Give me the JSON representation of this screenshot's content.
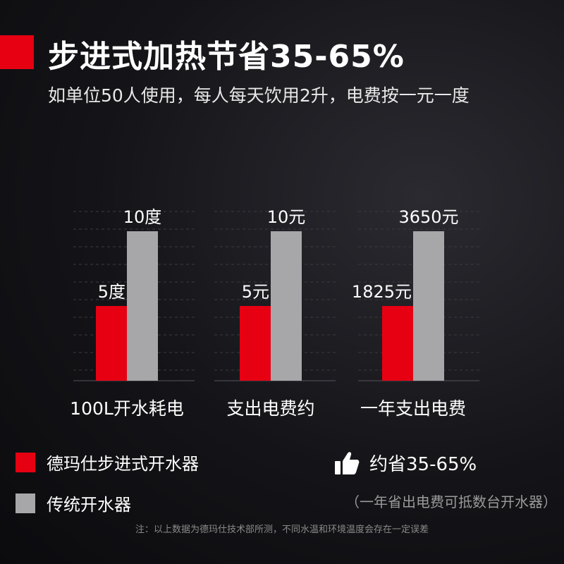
{
  "header": {
    "title": "步进式加热节省35-65%",
    "subtitle": "如单位50人使用，每人每天饮用2升，电费按一元一度",
    "accent_color": "#e60012"
  },
  "chart_data": {
    "type": "bar",
    "title": "",
    "xlabel": "",
    "ylabel": "",
    "grid": true,
    "legend_position": "bottom-left",
    "groups": [
      {
        "category": "100L开水耗电",
        "values": [
          5,
          10
        ],
        "labels": [
          "5度",
          "10度"
        ]
      },
      {
        "category": "支出电费约",
        "values": [
          5,
          10
        ],
        "labels": [
          "5元",
          "10元"
        ]
      },
      {
        "category": "一年支出电费",
        "values": [
          1825,
          3650
        ],
        "labels": [
          "1825元",
          "3650元"
        ]
      }
    ],
    "series": [
      {
        "name": "德玛仕步进式开水器",
        "color": "#e60012"
      },
      {
        "name": "传统开水器",
        "color": "#a7a7aa"
      }
    ]
  },
  "legend": {
    "items": [
      {
        "label": "德玛仕步进式开水器",
        "color": "#e60012"
      },
      {
        "label": "传统开水器",
        "color": "#a7a7aa"
      }
    ]
  },
  "saving": {
    "icon": "thumbs-up-icon",
    "text": "约省35-65%",
    "note": "（一年省出电费可抵数台开水器）"
  },
  "footnote": "注：以上数据为德玛仕技术部所测，不同水温和环境温度会存在一定误差"
}
